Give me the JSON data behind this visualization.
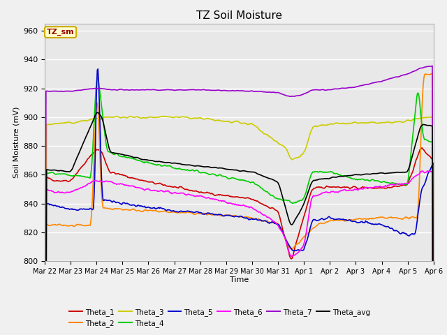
{
  "title": "TZ Soil Moisture",
  "ylabel": "Soil Moisture (mV)",
  "xlabel": "Time",
  "ylim": [
    800,
    965
  ],
  "yticks": [
    800,
    820,
    840,
    860,
    880,
    900,
    920,
    940,
    960
  ],
  "bg_color": "#e8e8e8",
  "legend_box_color": "#ffffcc",
  "legend_box_edge": "#ccaa00",
  "series_colors": {
    "Theta_1": "#cc0000",
    "Theta_2": "#ff8800",
    "Theta_3": "#cccc00",
    "Theta_4": "#00cc00",
    "Theta_5": "#0000cc",
    "Theta_6": "#ff00ff",
    "Theta_7": "#9900cc",
    "Theta_avg": "#000000"
  },
  "xtick_labels": [
    "Mar 22",
    "Mar 23",
    "Mar 24",
    "Mar 25",
    "Mar 26",
    "Mar 27",
    "Mar 28",
    "Mar 29",
    "Mar 30",
    "Mar 31",
    "Apr 1",
    "Apr 2",
    "Apr 3",
    "Apr 4",
    "Apr 5",
    "Apr 6"
  ],
  "num_points": 600
}
